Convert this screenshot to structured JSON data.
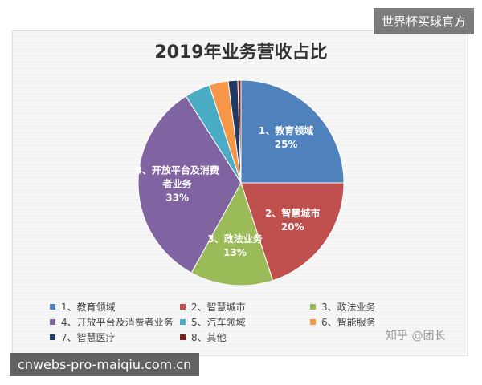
{
  "chart_data": {
    "type": "pie",
    "title": "2019年业务营收占比",
    "categories": [
      "1、教育领域",
      "2、智慧城市",
      "3、政法业务",
      "4、开放平台及消费者业务",
      "5、汽车领域",
      "6、智能服务",
      "7、智慧医疗",
      "8、其他"
    ],
    "values": [
      25,
      20,
      13,
      33,
      4,
      3,
      1.5,
      0.5
    ],
    "value_labels": [
      "25%",
      "20%",
      "13%",
      "33%",
      null,
      null,
      null,
      null
    ],
    "colors": [
      "#4f81bd",
      "#c0504d",
      "#9bbb59",
      "#8064a2",
      "#4bacc6",
      "#f79646",
      "#1f3864",
      "#7f1f1f"
    ]
  },
  "watermarks": {
    "top_right": "世界杯买球官方",
    "bottom_left": "cnwebs-pro-maiqiu.com.cn",
    "source": "知乎 @团长"
  }
}
